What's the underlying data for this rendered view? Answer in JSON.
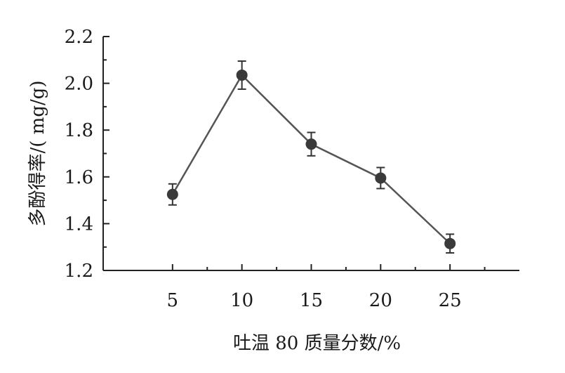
{
  "chart_data": {
    "type": "line",
    "title": "",
    "xlabel": "吐温 80 质量分数/%",
    "ylabel": "多酚得率/( mg/g)",
    "x": [
      5,
      10,
      15,
      20,
      25
    ],
    "series": [
      {
        "values": [
          1.525,
          2.035,
          1.74,
          1.595,
          1.315
        ],
        "error": [
          0.045,
          0.06,
          0.05,
          0.045,
          0.04
        ],
        "color": "#555555"
      }
    ],
    "xlim": [
      0,
      30
    ],
    "ylim": [
      1.2,
      2.2
    ],
    "x_ticks": [
      "5",
      "10",
      "15",
      "20",
      "25"
    ],
    "y_ticks": [
      "1.2",
      "1.4",
      "1.6",
      "1.8",
      "2.0",
      "2.2"
    ],
    "grid": false,
    "legend": "none",
    "marker": "circle",
    "error_bars": true
  }
}
